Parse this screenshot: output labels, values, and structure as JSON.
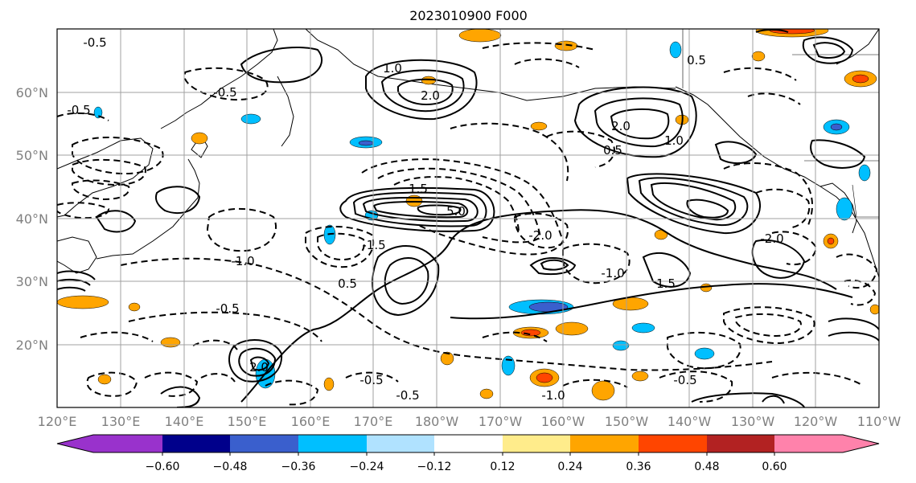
{
  "title": "2023010900 F000",
  "map": {
    "lat_labels": [
      "20°N",
      "30°N",
      "40°N",
      "50°N",
      "60°N"
    ],
    "lon_labels": [
      "120°E",
      "130°E",
      "140°E",
      "150°E",
      "160°E",
      "170°E",
      "180°W",
      "170°W",
      "160°W",
      "150°W",
      "140°W",
      "130°W",
      "120°W",
      "110°W"
    ]
  },
  "contour_labels": [
    "-0.5",
    "-0.5",
    "-0.5",
    "-0.5",
    "-0.5",
    "-0.5",
    "-1.0",
    "-1.0",
    "-1.5",
    "-2.0",
    "-2.0",
    "0.5",
    "0.5",
    "0.5",
    "1.0",
    "1.0",
    "1.5",
    "1.5",
    "2.0",
    "2.0",
    "2.0",
    "5.0",
    "-1.0",
    "-0.5"
  ],
  "colorbar": {
    "ticks": [
      "-0.60",
      "-0.48",
      "-0.36",
      "-0.24",
      "-0.12",
      "0.12",
      "0.24",
      "0.36",
      "0.48",
      "0.60"
    ],
    "colors": [
      "#9932cc",
      "#00008b",
      "#3a5fcd",
      "#00bfff",
      "#b0e2ff",
      "#ffffff",
      "#ffec8b",
      "#ffa500",
      "#ff4500",
      "#b22222",
      "#ff82ab"
    ]
  }
}
